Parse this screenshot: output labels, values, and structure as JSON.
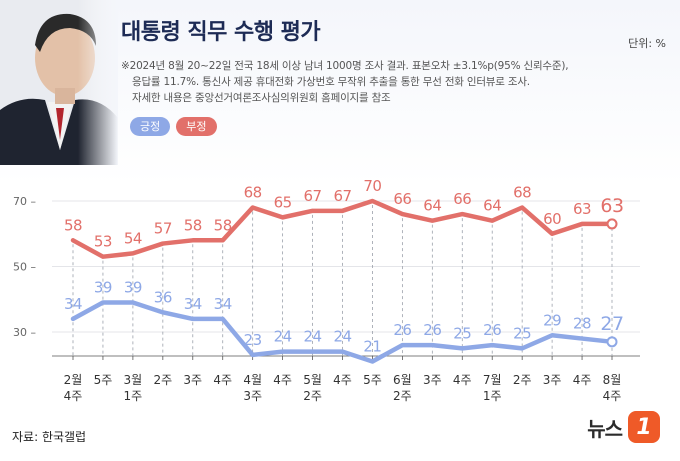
{
  "header": {
    "title": "대통령 직무 수행 평가",
    "unit": "단위: %",
    "note_lines": [
      "※2024년 8월 20~22일 전국 18세 이상 남녀 1000명 조사 결과. 표본오차 ±3.1%p(95% 신뢰수준),",
      "응답률 11.7%. 통신사 제공 휴대전화 가상번호 무작위 추출을 통한 무선 전화 인터뷰로 조사.",
      "자세한 내용은 중앙선거여론조사심의위원회 홈페이지를 참조"
    ]
  },
  "legend": {
    "positive": "긍정",
    "negative": "부정"
  },
  "colors": {
    "positive": "#8ea8e6",
    "negative": "#e2706a",
    "grid": "#9aa0aa",
    "axis": "#555555"
  },
  "chart_data": {
    "type": "line",
    "title": "대통령 직무 수행 평가",
    "categories": [
      [
        "2월",
        "4주"
      ],
      [
        "5주",
        ""
      ],
      [
        "3월",
        "1주"
      ],
      [
        "2주",
        ""
      ],
      [
        "3주",
        ""
      ],
      [
        "4주",
        ""
      ],
      [
        "4월",
        "3주"
      ],
      [
        "4주",
        ""
      ],
      [
        "5월",
        "2주"
      ],
      [
        "4주",
        ""
      ],
      [
        "5주",
        ""
      ],
      [
        "6월",
        "2주"
      ],
      [
        "3주",
        ""
      ],
      [
        "4주",
        ""
      ],
      [
        "7월",
        "1주"
      ],
      [
        "2주",
        ""
      ],
      [
        "3주",
        ""
      ],
      [
        "4주",
        ""
      ],
      [
        "8월",
        "4주"
      ]
    ],
    "series": [
      {
        "name": "긍정",
        "values": [
          34,
          39,
          39,
          36,
          34,
          34,
          23,
          24,
          24,
          24,
          21,
          26,
          26,
          25,
          26,
          25,
          29,
          28,
          27
        ]
      },
      {
        "name": "부정",
        "values": [
          58,
          53,
          54,
          57,
          58,
          58,
          68,
          65,
          67,
          67,
          70,
          66,
          64,
          66,
          64,
          68,
          60,
          63,
          63
        ]
      }
    ],
    "y_ticks": [
      30,
      50,
      70
    ],
    "ylim": [
      20,
      72
    ]
  },
  "footer": {
    "source": "자료: 한국갤럽",
    "logo_text": "뉴스",
    "logo_badge": "1"
  }
}
